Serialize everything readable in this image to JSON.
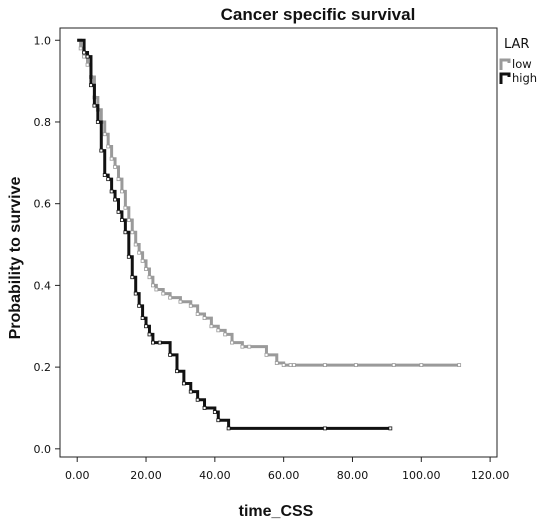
{
  "chart_data": {
    "type": "line",
    "title": "Cancer specific survival",
    "xlabel": "time_CSS",
    "ylabel": "Probability to survive",
    "xlim": [
      -5,
      122
    ],
    "ylim": [
      -0.02,
      1.03
    ],
    "x_ticks": [
      "0.00",
      "20.00",
      "40.00",
      "60.00",
      "80.00",
      "100.00",
      "120.00"
    ],
    "y_ticks": [
      "0.0",
      "0.2",
      "0.4",
      "0.6",
      "0.8",
      "1.0"
    ],
    "legend": {
      "title": "LAR",
      "position": "top-right"
    },
    "grid": false,
    "step": true,
    "series": [
      {
        "name": "low",
        "color": "#9a9a9a",
        "x": [
          0,
          1,
          2,
          3,
          4,
          5,
          6,
          7,
          8,
          9,
          10,
          11,
          12,
          13,
          14,
          15,
          16,
          17,
          18,
          19,
          20,
          21,
          22,
          23,
          25,
          27,
          30,
          33,
          35,
          37,
          39,
          41,
          43,
          45,
          48,
          50,
          55,
          58,
          60,
          62,
          63,
          72,
          81,
          92,
          100,
          111
        ],
        "y": [
          1.0,
          0.98,
          0.96,
          0.94,
          0.91,
          0.86,
          0.83,
          0.8,
          0.77,
          0.74,
          0.71,
          0.69,
          0.66,
          0.63,
          0.59,
          0.56,
          0.53,
          0.5,
          0.48,
          0.46,
          0.44,
          0.42,
          0.4,
          0.39,
          0.38,
          0.37,
          0.36,
          0.35,
          0.33,
          0.32,
          0.3,
          0.29,
          0.28,
          0.26,
          0.25,
          0.25,
          0.23,
          0.21,
          0.205,
          0.205,
          0.205,
          0.205,
          0.205,
          0.205,
          0.205,
          0.205
        ]
      },
      {
        "name": "high",
        "color": "#111111",
        "x": [
          0,
          2,
          3,
          4,
          5,
          6,
          7,
          8,
          9,
          10,
          11,
          12,
          13,
          14,
          15,
          16,
          17,
          18,
          19,
          20,
          21,
          22,
          24,
          27,
          29,
          31,
          33,
          35,
          37,
          40,
          41,
          44,
          72,
          91
        ],
        "y": [
          1.0,
          0.97,
          0.96,
          0.89,
          0.84,
          0.8,
          0.73,
          0.67,
          0.66,
          0.63,
          0.61,
          0.58,
          0.56,
          0.53,
          0.47,
          0.42,
          0.38,
          0.35,
          0.32,
          0.3,
          0.28,
          0.26,
          0.26,
          0.23,
          0.19,
          0.16,
          0.14,
          0.12,
          0.1,
          0.09,
          0.07,
          0.05,
          0.05,
          0.05
        ]
      }
    ]
  }
}
